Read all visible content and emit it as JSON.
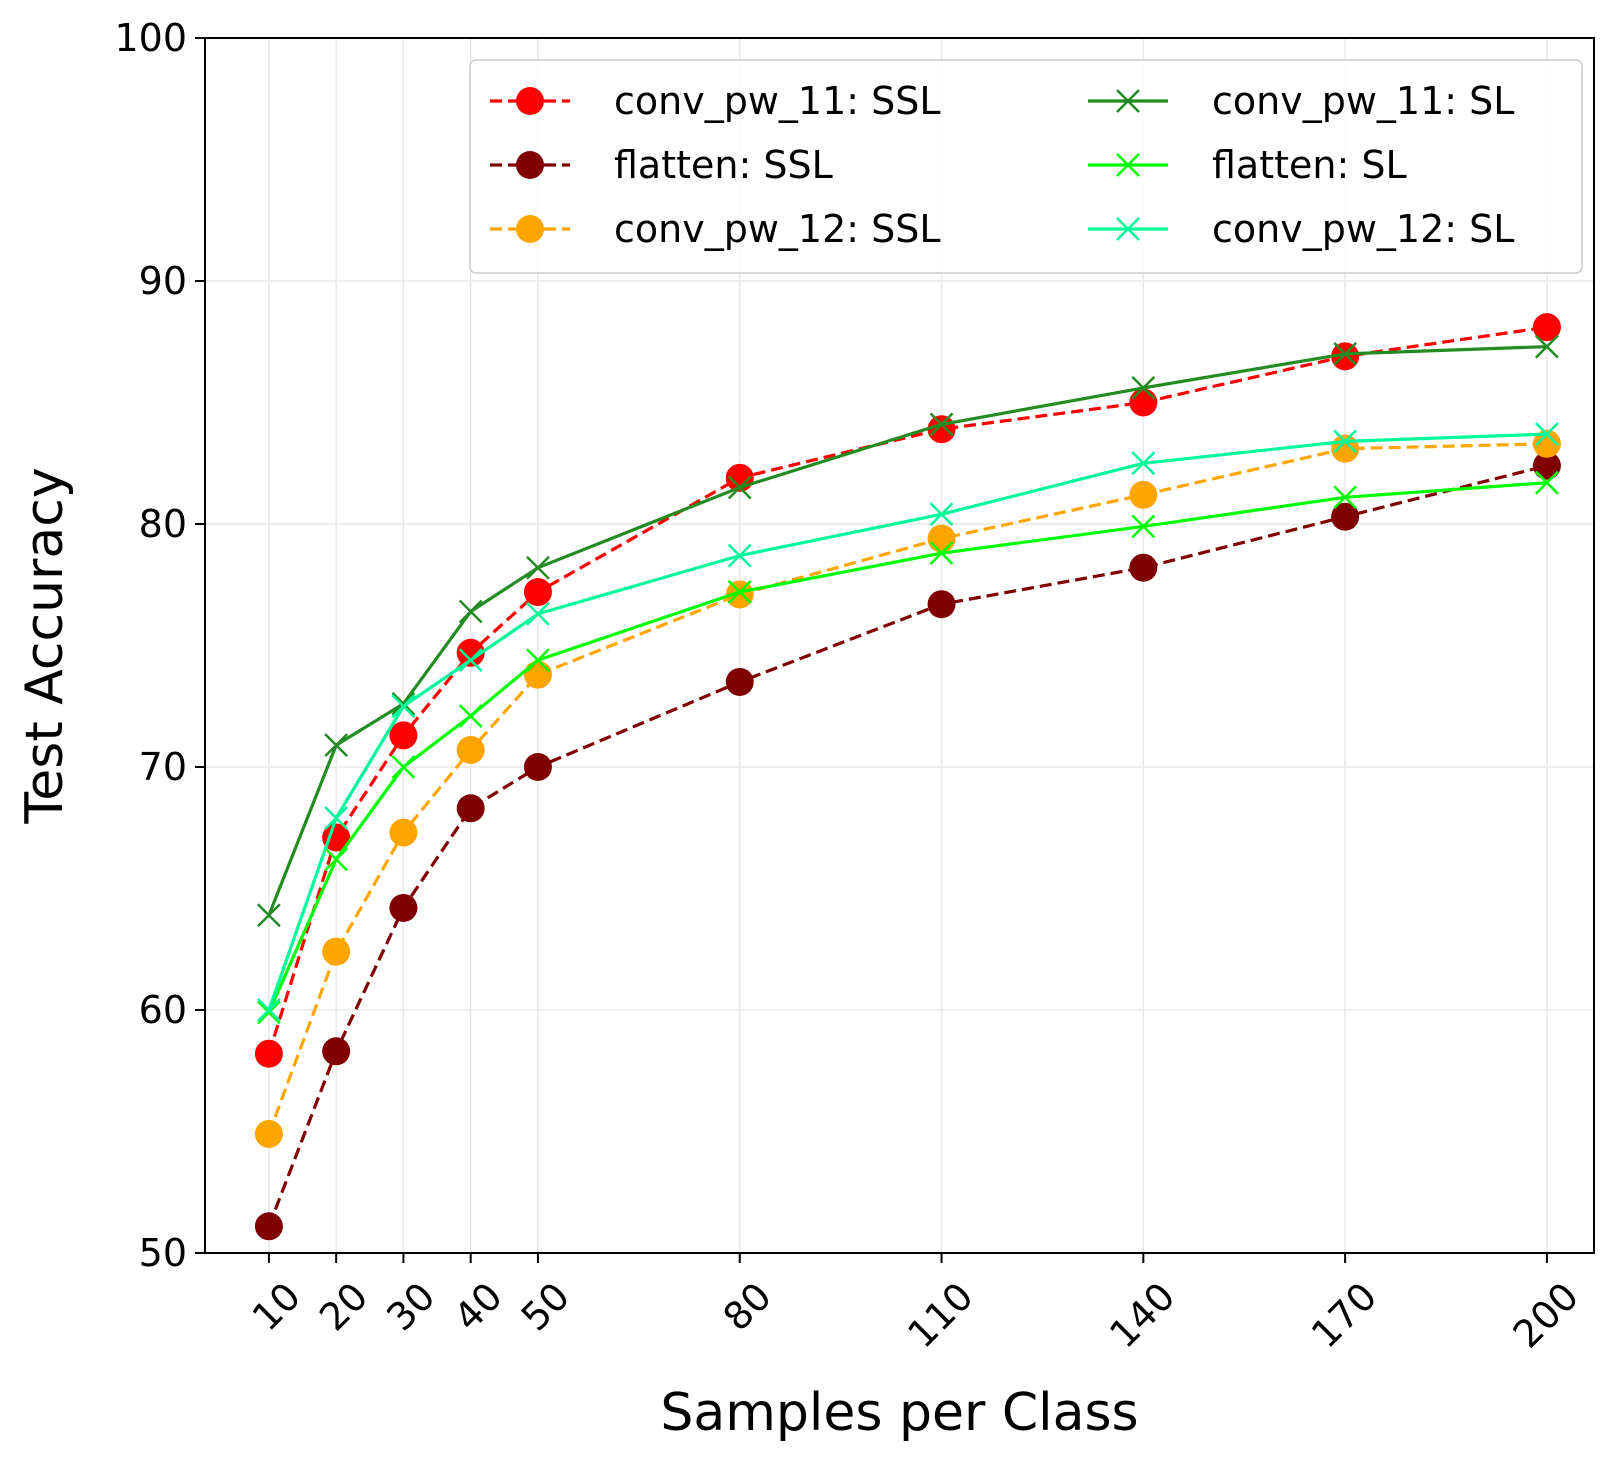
{
  "chart_data": {
    "type": "line",
    "title": "",
    "xlabel": "Samples per Class",
    "ylabel": "Test Accuracy",
    "x": [
      10,
      20,
      30,
      40,
      50,
      80,
      110,
      140,
      170,
      200
    ],
    "xtick_labels": [
      "10",
      "20",
      "30",
      "40",
      "50",
      "80",
      "110",
      "140",
      "170",
      "200"
    ],
    "xlim": [
      0.5,
      207
    ],
    "ylim": [
      50,
      100
    ],
    "yticks": [
      50,
      60,
      70,
      80,
      90,
      100
    ],
    "ytick_labels": [
      "50",
      "60",
      "70",
      "80",
      "90",
      "100"
    ],
    "grid": true,
    "legend_position": "top-right",
    "legend_columns": 2,
    "series": [
      {
        "name": "conv_pw_11: SSL",
        "color": "#ff0000",
        "line_style": "dashed",
        "marker": "circle",
        "values": [
          58.2,
          67.1,
          71.3,
          74.7,
          77.2,
          81.9,
          83.9,
          85.0,
          86.9,
          88.1
        ]
      },
      {
        "name": "flatten: SSL",
        "color": "#800000",
        "line_style": "dashed",
        "marker": "circle",
        "values": [
          51.1,
          58.3,
          64.2,
          68.3,
          70.0,
          73.5,
          76.7,
          78.2,
          80.3,
          82.4
        ]
      },
      {
        "name": "conv_pw_12: SSL",
        "color": "#ffa500",
        "line_style": "dashed",
        "marker": "circle",
        "values": [
          54.9,
          62.4,
          67.3,
          70.7,
          73.8,
          77.1,
          79.4,
          81.2,
          83.1,
          83.3
        ]
      },
      {
        "name": "conv_pw_11: SL",
        "color": "#228b22",
        "line_style": "solid",
        "marker": "x",
        "values": [
          63.9,
          70.9,
          72.6,
          76.4,
          78.2,
          81.5,
          84.1,
          85.6,
          87.0,
          87.3
        ]
      },
      {
        "name": "flatten: SL",
        "color": "#00ff00",
        "line_style": "solid",
        "marker": "x",
        "values": [
          59.9,
          66.2,
          70.0,
          72.1,
          74.4,
          77.2,
          78.8,
          79.9,
          81.1,
          81.7
        ]
      },
      {
        "name": "conv_pw_12: SL",
        "color": "#00fa9a",
        "line_style": "solid",
        "marker": "x",
        "values": [
          60.0,
          67.9,
          72.5,
          74.4,
          76.3,
          78.7,
          80.4,
          82.5,
          83.4,
          83.7
        ]
      }
    ]
  }
}
